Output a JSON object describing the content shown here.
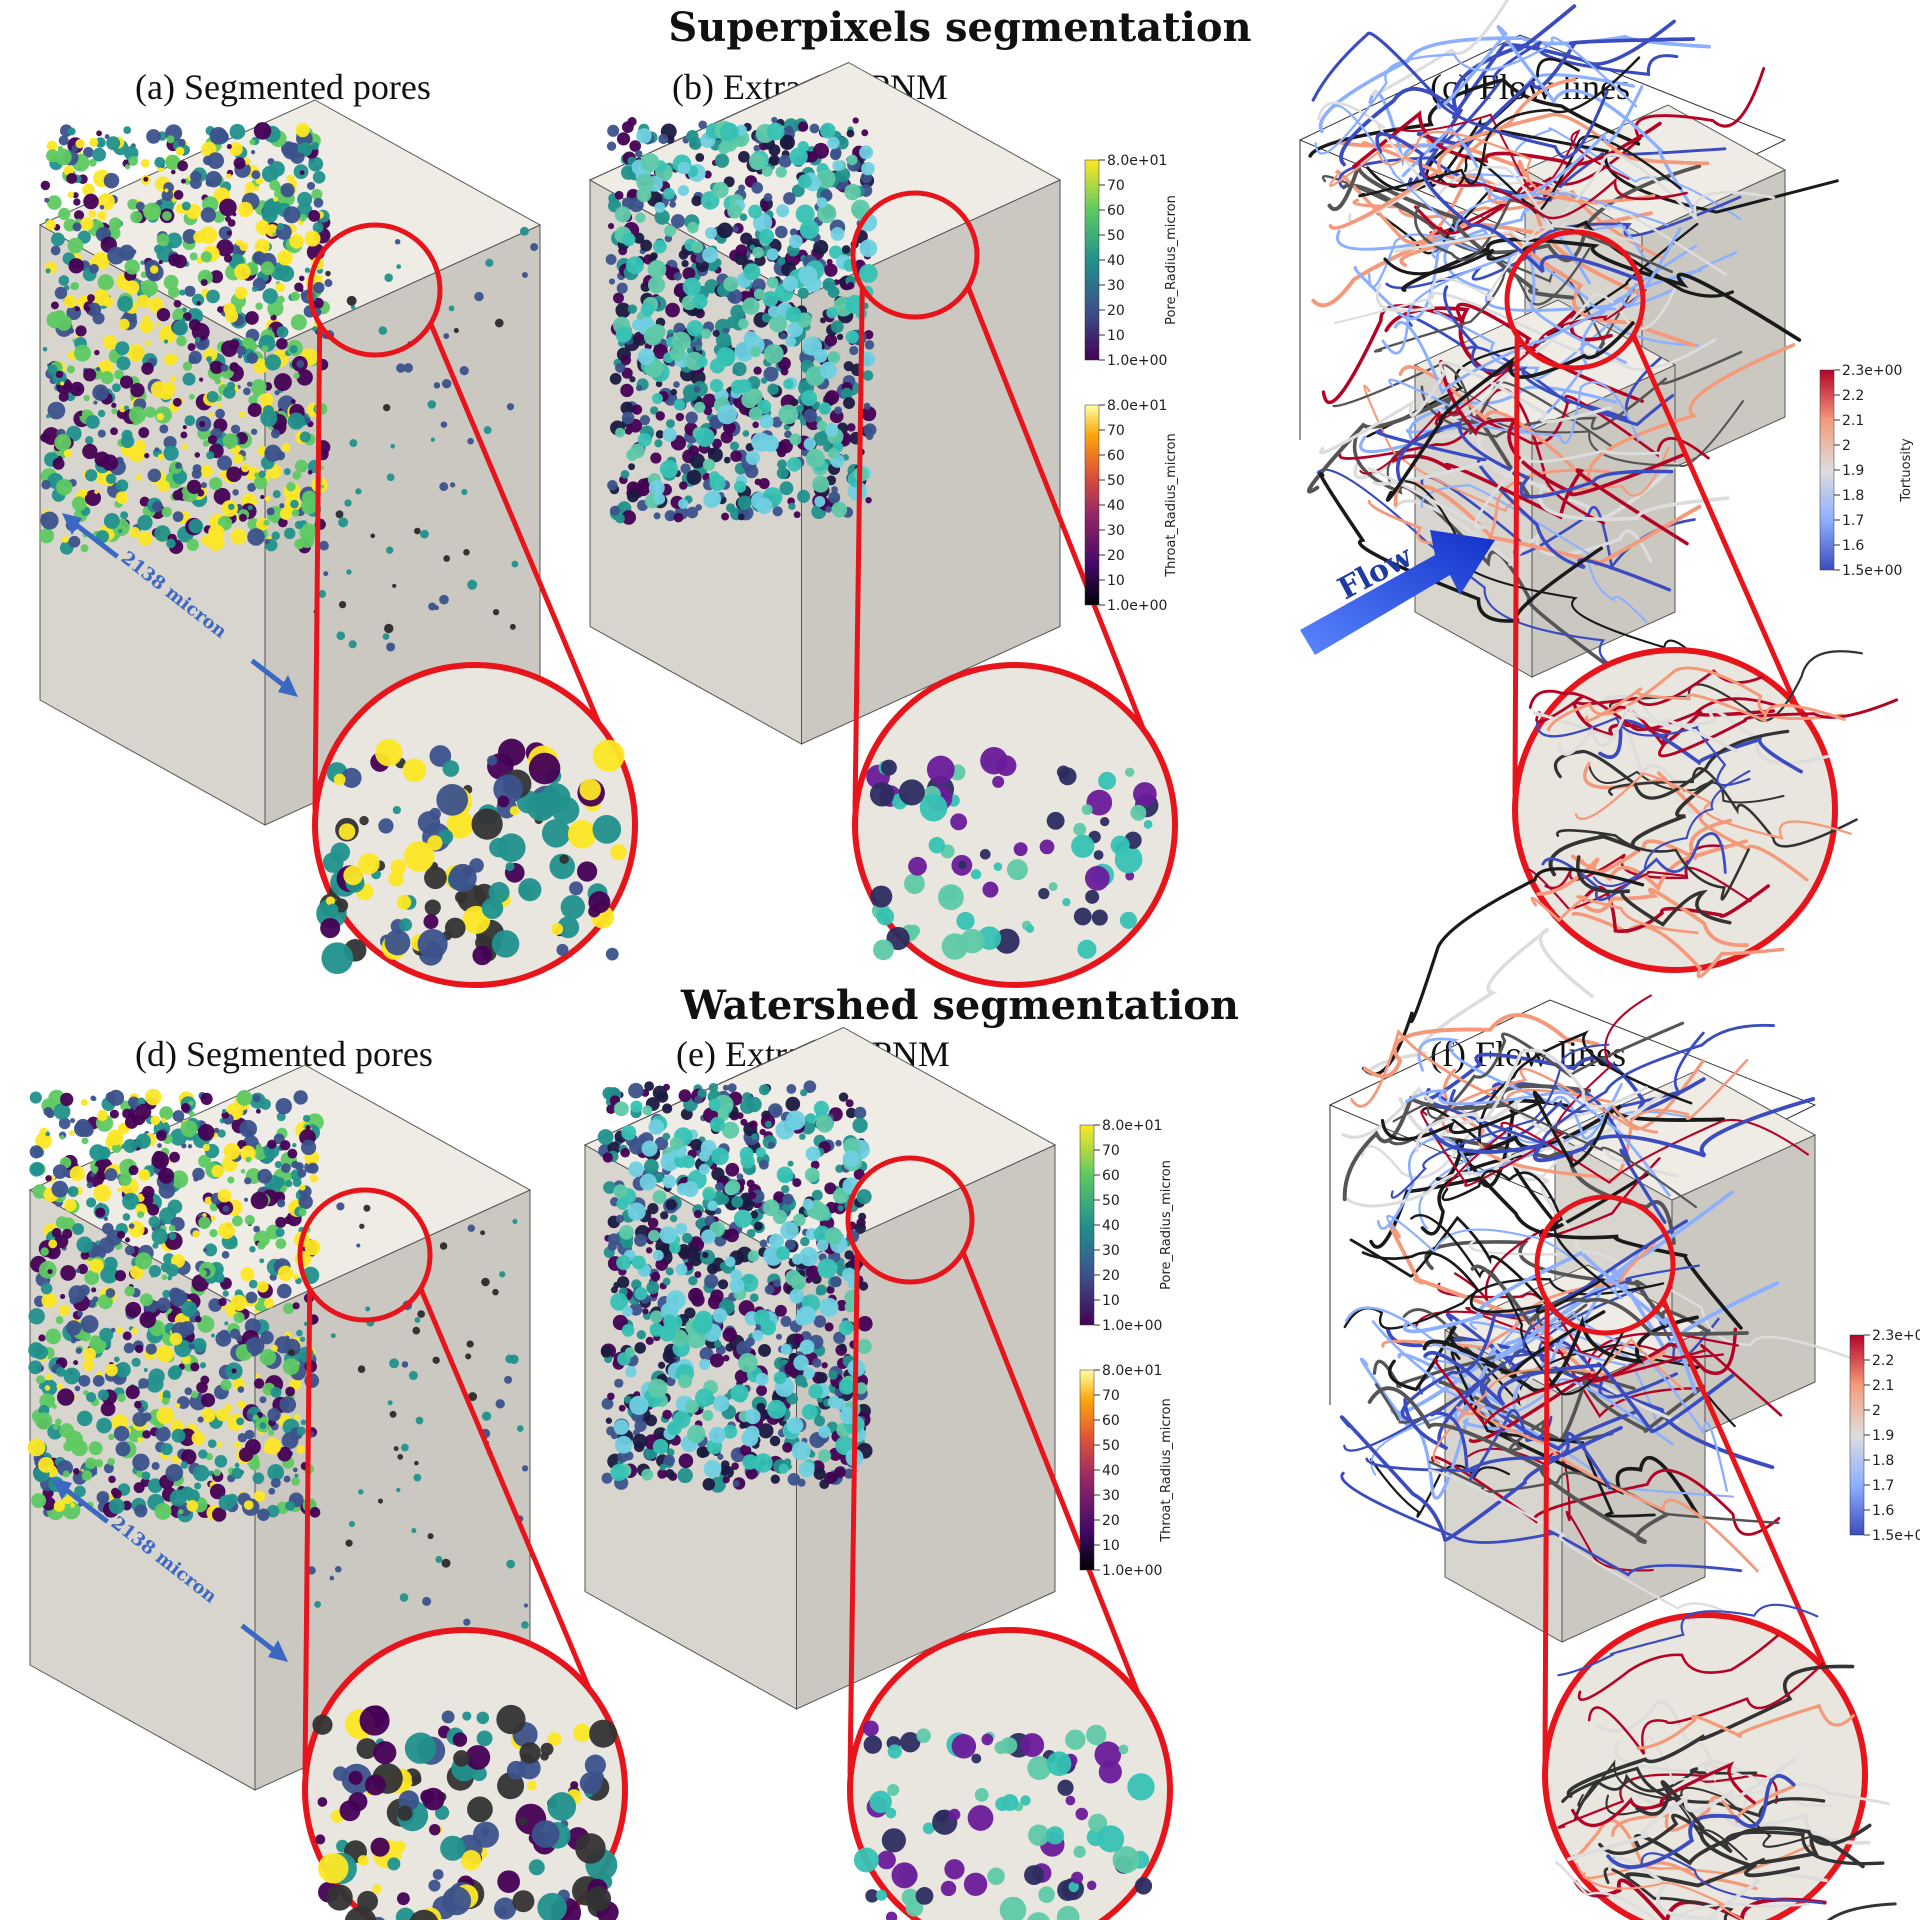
{
  "sections": {
    "top": "Superpixels segmentation",
    "bottom": "Watershed segmentation"
  },
  "panels": {
    "a": "(a) Segmented pores",
    "b": "(b) Extracted PNM",
    "c": "(c) Flow lines",
    "d": "(d) Segmented pores",
    "e": "(e) Extracted PNM",
    "f": "(f) Flow lines"
  },
  "dimension_label": "2138 micron",
  "flow_label": "Flow",
  "colorbars": {
    "pore": {
      "title": "Pore_Radius_micron",
      "ticks": [
        "8.0e+01",
        "70",
        "60",
        "50",
        "40",
        "30",
        "20",
        "10",
        "1.0e+00"
      ]
    },
    "throat": {
      "title": "Throat_Radius_micron",
      "ticks": [
        "8.0e+01",
        "70",
        "60",
        "50",
        "40",
        "30",
        "20",
        "10",
        "1.0e+00"
      ]
    },
    "tortuosity": {
      "title": "Tortuosity",
      "ticks": [
        "2.3e+00",
        "2.2",
        "2.1",
        "2",
        "1.9",
        "1.8",
        "1.7",
        "1.6",
        "1.5e+00"
      ]
    }
  },
  "colors": {
    "viridis": [
      "#440154",
      "#3b528b",
      "#21918c",
      "#5ec962",
      "#fde725"
    ],
    "inferno": [
      "#000004",
      "#420a68",
      "#932667",
      "#dd513a",
      "#fca50a",
      "#fcffa4"
    ],
    "coolwarm": [
      "#3b4cc0",
      "#8db0fe",
      "#dddddd",
      "#f49a7b",
      "#b40426"
    ],
    "zoom_red": "#e8141b",
    "solid": "#efece6"
  }
}
